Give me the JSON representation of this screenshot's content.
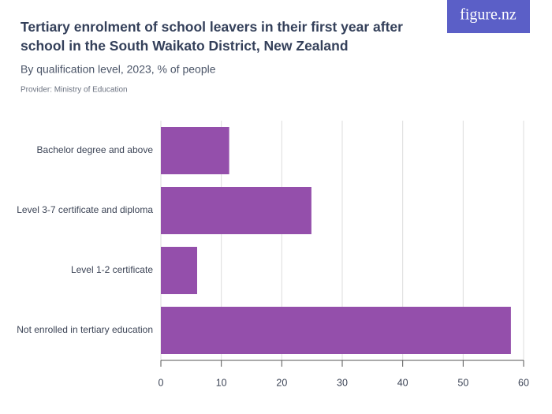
{
  "brand": "figure.nz",
  "chart_data": {
    "type": "hbar",
    "title": "Tertiary enrolment of school leavers in their first year after school in the South Waikato District, New Zealand",
    "subtitle": "By qualification level, 2023, % of people",
    "source": "Provider: Ministry of Education",
    "categories": [
      "Bachelor degree and above",
      "Level 3-7 certificate and diploma",
      "Level 1-2 certificate",
      "Not enrolled in tertiary education"
    ],
    "values": [
      11.3,
      24.9,
      6.0,
      57.9
    ],
    "color": "#944fab",
    "xlim": [
      0,
      60
    ],
    "xticks": [
      0,
      10,
      20,
      30,
      40,
      50,
      60
    ],
    "grid": true
  }
}
